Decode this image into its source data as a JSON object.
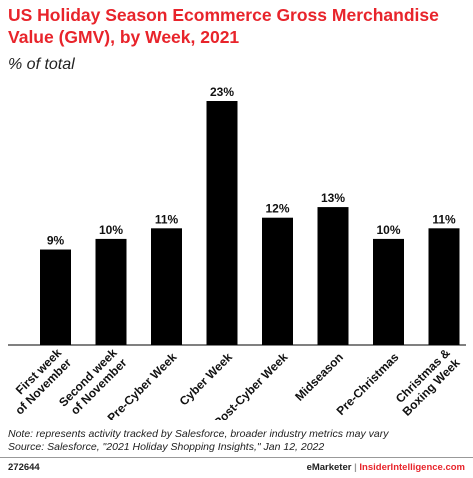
{
  "chart_data": {
    "type": "bar",
    "title": "US Holiday Season Ecommerce Gross Merchandise Value (GMV), by Week, 2021",
    "subtitle": "% of total",
    "categories": [
      [
        "First week",
        "of November"
      ],
      [
        "Second week",
        "of November"
      ],
      [
        "Pre-Cyber Week"
      ],
      [
        "Cyber Week"
      ],
      [
        "Post-Cyber Week"
      ],
      [
        "Midseason"
      ],
      [
        "Pre-Christmas"
      ],
      [
        "Christmas &",
        "Boxing Week"
      ]
    ],
    "values": [
      9,
      10,
      11,
      23,
      12,
      13,
      10,
      11
    ],
    "data_labels": [
      "9%",
      "10%",
      "11%",
      "23%",
      "12%",
      "13%",
      "10%",
      "11%"
    ],
    "ylim": [
      0,
      24
    ],
    "grid": false,
    "bar_color": "#000000"
  },
  "footer": {
    "note": "Note: represents activity tracked by Salesforce, broader industry metrics may vary",
    "source": "Source: Salesforce, \"2021 Holiday Shopping Insights,\" Jan 12, 2022",
    "chart_id": "272644",
    "brand": "eMarketer",
    "separator": "|",
    "site": "InsiderIntelligence.com"
  },
  "colors": {
    "title": "#e8242b",
    "site": "#e8242b"
  }
}
